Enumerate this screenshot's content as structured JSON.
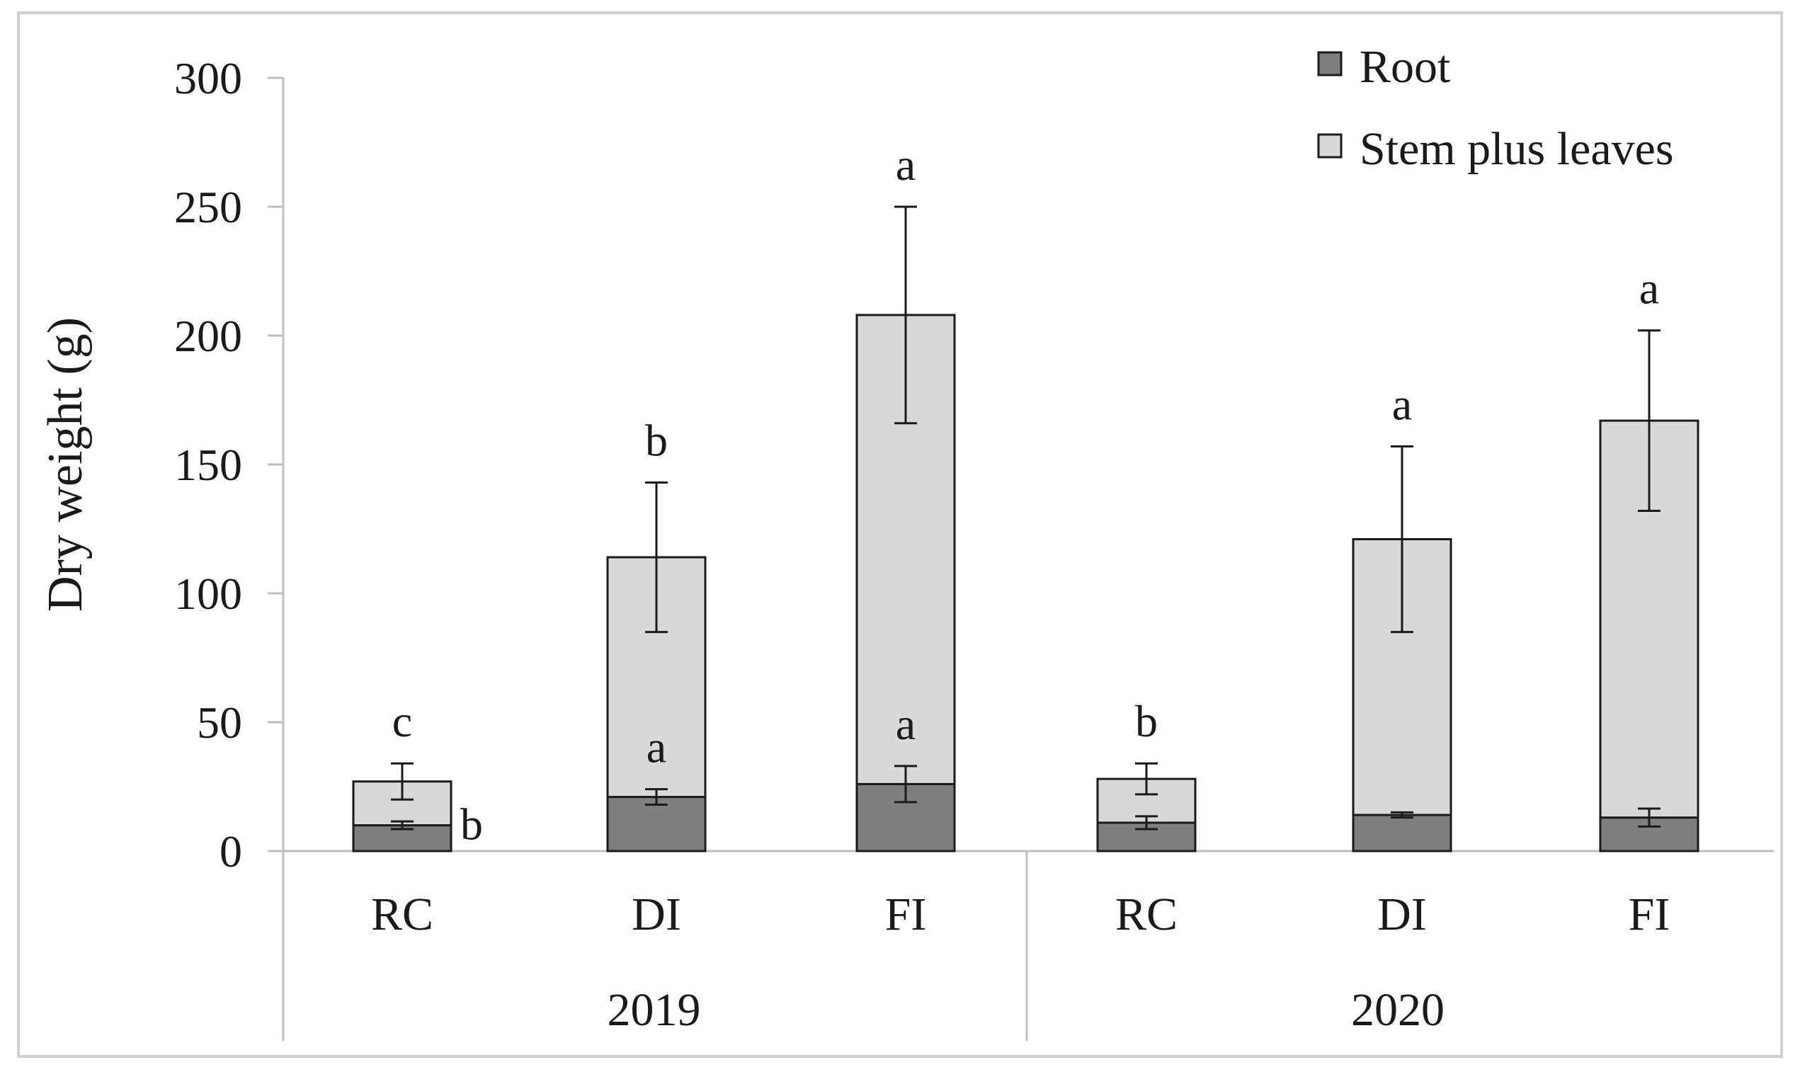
{
  "chart_data": {
    "type": "bar",
    "stacked": true,
    "ylabel": "Dry weight (g)",
    "xlabel": "",
    "ylim": [
      0,
      300
    ],
    "yticks": [
      0,
      50,
      100,
      150,
      200,
      250,
      300
    ],
    "grid": false,
    "legend_position": "top-right",
    "groups": [
      {
        "label": "2019",
        "categories": [
          "RC",
          "DI",
          "FI"
        ]
      },
      {
        "label": "2020",
        "categories": [
          "RC",
          "DI",
          "FI"
        ]
      }
    ],
    "categories": [
      "RC",
      "DI",
      "FI",
      "RC",
      "DI",
      "FI"
    ],
    "series": [
      {
        "name": "Root",
        "color": "#7f7f7f",
        "values": [
          10,
          21,
          26,
          11,
          14,
          13
        ],
        "errors": [
          1.5,
          3,
          7,
          2.5,
          1,
          3.5
        ],
        "letters": [
          "b",
          "a",
          "a",
          "",
          "",
          ""
        ]
      },
      {
        "name": "Stem plus leaves",
        "color": "#d9d9d9",
        "values": [
          17,
          93,
          182,
          17,
          107,
          154
        ],
        "errors": [
          7,
          29,
          42,
          6,
          36,
          35
        ],
        "letters": [
          "c",
          "b",
          "a",
          "b",
          "a",
          "a"
        ]
      }
    ]
  }
}
